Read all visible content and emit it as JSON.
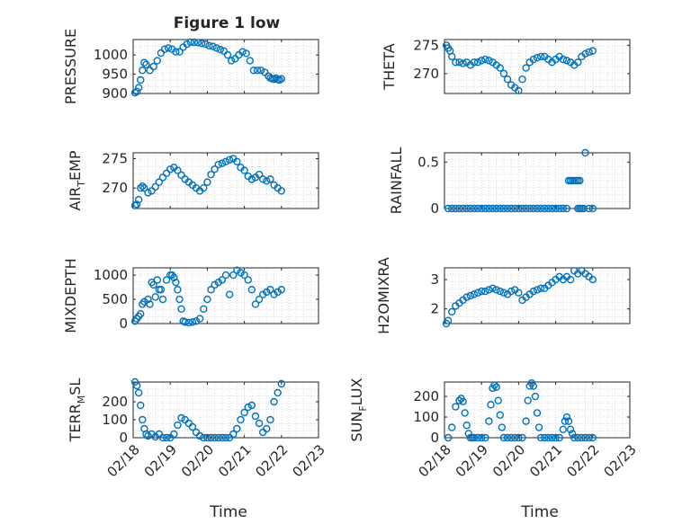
{
  "figure": {
    "title": "Figure 1 low",
    "xlabel": "Time",
    "x_ticks": [
      "02/18",
      "02/19",
      "02/20",
      "02/21",
      "02/22",
      "02/23"
    ]
  },
  "style": {
    "marker_color": "#0072BD",
    "axis_color": "#262626",
    "grid_color": "#d9d9d9"
  },
  "chart_data": [
    {
      "type": "scatter",
      "panel": "pressure",
      "title": "Figure 1 low",
      "ylabel": "PRESSURE",
      "ylabel_parts": [
        "PRESSURE"
      ],
      "xlabel": "",
      "xlim": [
        0,
        5
      ],
      "ylim": [
        900,
        1040
      ],
      "yticks": [
        900,
        950,
        1000
      ],
      "ytick_labels": [
        "900",
        "950",
        "1000"
      ],
      "x": [
        0.05,
        0.1,
        0.15,
        0.2,
        0.25,
        0.3,
        0.35,
        0.45,
        0.55,
        0.65,
        0.75,
        0.85,
        0.95,
        1.05,
        1.15,
        1.25,
        1.35,
        1.45,
        1.55,
        1.65,
        1.75,
        1.85,
        1.95,
        2.05,
        2.15,
        2.25,
        2.35,
        2.45,
        2.55,
        2.65,
        2.75,
        2.85,
        2.95,
        3.05,
        3.15,
        3.25,
        3.35,
        3.45,
        3.55,
        3.65,
        3.7,
        3.75,
        3.8,
        3.85,
        3.9,
        3.95,
        4.0
      ],
      "y": [
        902,
        905,
        915,
        935,
        960,
        980,
        975,
        960,
        970,
        985,
        1005,
        1015,
        1018,
        1015,
        1008,
        1008,
        1020,
        1028,
        1033,
        1033,
        1032,
        1030,
        1028,
        1024,
        1022,
        1018,
        1014,
        1010,
        1000,
        985,
        990,
        1000,
        1008,
        1004,
        985,
        960,
        960,
        960,
        955,
        945,
        940,
        938,
        937,
        940,
        936,
        935,
        938
      ]
    },
    {
      "type": "scatter",
      "panel": "theta",
      "ylabel": "THETA",
      "ylabel_parts": [
        "THETA"
      ],
      "xlabel": "",
      "xlim": [
        0,
        5
      ],
      "ylim": [
        266.5,
        276
      ],
      "yticks": [
        270,
        275
      ],
      "ytick_labels": [
        "270",
        "275"
      ],
      "x": [
        0.05,
        0.1,
        0.15,
        0.2,
        0.3,
        0.4,
        0.5,
        0.6,
        0.7,
        0.8,
        0.9,
        1.0,
        1.1,
        1.2,
        1.3,
        1.4,
        1.5,
        1.6,
        1.7,
        1.8,
        1.9,
        2.0,
        2.1,
        2.2,
        2.3,
        2.4,
        2.5,
        2.6,
        2.7,
        2.8,
        2.9,
        3.0,
        3.1,
        3.2,
        3.3,
        3.4,
        3.5,
        3.6,
        3.7,
        3.8,
        3.9,
        4.0
      ],
      "y": [
        275,
        274.5,
        274,
        273,
        272,
        272,
        271.8,
        272,
        271.5,
        272,
        272,
        272.3,
        272.5,
        272.3,
        272,
        271.5,
        271,
        270,
        269,
        268,
        267.5,
        267,
        269,
        271,
        272,
        272.5,
        272.8,
        273,
        273,
        272.5,
        272,
        272.5,
        273,
        272.5,
        272.3,
        272,
        271.5,
        272,
        273,
        273.5,
        273.8,
        274
      ]
    },
    {
      "type": "scatter",
      "panel": "air_temp",
      "ylabel": "AIR_TEMP",
      "ylabel_parts": [
        "AIR",
        "T",
        "EMP"
      ],
      "xlabel": "",
      "xlim": [
        0,
        5
      ],
      "ylim": [
        266.5,
        276
      ],
      "yticks": [
        270,
        275
      ],
      "ytick_labels": [
        "270",
        "275"
      ],
      "x": [
        0.05,
        0.1,
        0.15,
        0.2,
        0.25,
        0.3,
        0.4,
        0.5,
        0.6,
        0.7,
        0.8,
        0.9,
        1.0,
        1.1,
        1.2,
        1.3,
        1.4,
        1.5,
        1.6,
        1.7,
        1.8,
        1.9,
        2.0,
        2.1,
        2.2,
        2.3,
        2.4,
        2.5,
        2.6,
        2.7,
        2.8,
        2.9,
        3.0,
        3.1,
        3.2,
        3.3,
        3.4,
        3.5,
        3.6,
        3.7,
        3.8,
        3.9,
        4.0
      ],
      "y": [
        267,
        267.2,
        268,
        270,
        270.3,
        270,
        269.2,
        269.5,
        270.2,
        271,
        271.8,
        272.5,
        273.2,
        273.5,
        273,
        272.2,
        271.5,
        271,
        270.5,
        270,
        269.5,
        270,
        271,
        272.3,
        273.2,
        274,
        274.2,
        274.5,
        274.8,
        275,
        274.5,
        273.5,
        273,
        272,
        271.5,
        271.8,
        272.3,
        271.5,
        271.2,
        271.5,
        270.5,
        270,
        269.5
      ]
    },
    {
      "type": "scatter",
      "panel": "rainfall",
      "ylabel": "RAINFALL",
      "ylabel_parts": [
        "RAINFALL"
      ],
      "xlabel": "",
      "xlim": [
        0,
        5
      ],
      "ylim": [
        0,
        0.6
      ],
      "yticks": [
        0,
        0.5
      ],
      "ytick_labels": [
        "0",
        "0.5"
      ],
      "x": [
        0.1,
        0.2,
        0.3,
        0.4,
        0.5,
        0.6,
        0.7,
        0.8,
        0.9,
        1.0,
        1.1,
        1.2,
        1.3,
        1.4,
        1.5,
        1.6,
        1.7,
        1.8,
        1.9,
        2.0,
        2.1,
        2.2,
        2.3,
        2.4,
        2.5,
        2.6,
        2.7,
        2.8,
        2.9,
        3.0,
        3.1,
        3.2,
        3.3,
        3.35,
        3.4,
        3.45,
        3.5,
        3.55,
        3.6,
        3.65,
        3.6,
        3.65,
        3.7,
        3.75,
        3.8,
        3.9,
        4.0
      ],
      "y": [
        0,
        0,
        0,
        0,
        0,
        0,
        0,
        0,
        0,
        0,
        0,
        0,
        0,
        0,
        0,
        0,
        0,
        0,
        0,
        0,
        0,
        0,
        0,
        0,
        0,
        0,
        0,
        0,
        0,
        0,
        0,
        0,
        0,
        0.3,
        0.3,
        0.3,
        0.3,
        0.3,
        0.3,
        0.3,
        0,
        0,
        0,
        0,
        0.6,
        0,
        0
      ]
    },
    {
      "type": "scatter",
      "panel": "mixdepth",
      "ylabel": "MIXDEPTH",
      "ylabel_parts": [
        "MIXDEPTH"
      ],
      "xlabel": "",
      "xlim": [
        0,
        5
      ],
      "ylim": [
        0,
        1150
      ],
      "yticks": [
        0,
        500,
        1000
      ],
      "ytick_labels": [
        "0",
        "500",
        "1000"
      ],
      "x": [
        0.05,
        0.1,
        0.15,
        0.2,
        0.25,
        0.3,
        0.4,
        0.45,
        0.5,
        0.55,
        0.6,
        0.65,
        0.7,
        0.75,
        0.8,
        0.9,
        1.0,
        1.05,
        1.1,
        1.15,
        1.2,
        1.25,
        1.3,
        1.35,
        1.4,
        1.5,
        1.6,
        1.7,
        1.8,
        1.9,
        2.0,
        2.1,
        2.2,
        2.3,
        2.4,
        2.5,
        2.6,
        2.7,
        2.8,
        2.9,
        3.0,
        3.1,
        3.2,
        3.3,
        3.4,
        3.5,
        3.6,
        3.7,
        3.8,
        3.9,
        4.0
      ],
      "y": [
        50,
        100,
        150,
        200,
        400,
        450,
        500,
        400,
        850,
        800,
        550,
        900,
        700,
        700,
        500,
        900,
        1000,
        1000,
        950,
        850,
        700,
        500,
        300,
        50,
        30,
        20,
        30,
        50,
        100,
        300,
        500,
        700,
        800,
        850,
        900,
        1000,
        600,
        1000,
        1100,
        1050,
        1000,
        900,
        700,
        400,
        500,
        600,
        650,
        700,
        600,
        650,
        700
      ]
    },
    {
      "type": "scatter",
      "panel": "h2omixra",
      "ylabel": "H2OMIXRA",
      "ylabel_parts": [
        "H2OMIXRA"
      ],
      "xlabel": "",
      "xlim": [
        0,
        5
      ],
      "ylim": [
        1.5,
        3.4
      ],
      "yticks": [
        2,
        3
      ],
      "ytick_labels": [
        "2",
        "3"
      ],
      "x": [
        0.05,
        0.1,
        0.2,
        0.3,
        0.4,
        0.5,
        0.6,
        0.7,
        0.8,
        0.9,
        1.0,
        1.1,
        1.2,
        1.3,
        1.4,
        1.5,
        1.6,
        1.7,
        1.8,
        1.9,
        2.0,
        2.1,
        2.2,
        2.3,
        2.4,
        2.5,
        2.6,
        2.7,
        2.8,
        2.9,
        3.0,
        3.1,
        3.2,
        3.3,
        3.4,
        3.5,
        3.6,
        3.7,
        3.8,
        3.9,
        4.0
      ],
      "y": [
        1.5,
        1.6,
        1.9,
        2.1,
        2.2,
        2.3,
        2.4,
        2.45,
        2.5,
        2.55,
        2.6,
        2.6,
        2.65,
        2.7,
        2.65,
        2.6,
        2.55,
        2.5,
        2.6,
        2.65,
        2.55,
        2.3,
        2.4,
        2.5,
        2.6,
        2.65,
        2.7,
        2.7,
        2.8,
        2.9,
        3.0,
        3.1,
        3.0,
        3.1,
        3.0,
        3.3,
        3.2,
        3.3,
        3.2,
        3.1,
        3.0
      ]
    },
    {
      "type": "scatter",
      "panel": "terr_msl",
      "ylabel": "TERR_MSL",
      "ylabel_parts": [
        "TERR",
        "M",
        "SL"
      ],
      "xlabel": "Time",
      "xlim": [
        0,
        5
      ],
      "ylim": [
        0,
        310
      ],
      "yticks": [
        0,
        100,
        200
      ],
      "ytick_labels": [
        "0",
        "100",
        "200"
      ],
      "x": [
        0.05,
        0.1,
        0.15,
        0.2,
        0.25,
        0.3,
        0.35,
        0.4,
        0.5,
        0.6,
        0.7,
        0.8,
        0.9,
        1.0,
        1.1,
        1.2,
        1.3,
        1.4,
        1.5,
        1.6,
        1.7,
        1.8,
        1.9,
        2.0,
        2.1,
        2.2,
        2.3,
        2.4,
        2.5,
        2.6,
        2.7,
        2.8,
        2.9,
        3.0,
        3.1,
        3.2,
        3.3,
        3.4,
        3.5,
        3.6,
        3.7,
        3.8,
        3.9,
        4.0
      ],
      "y": [
        310,
        290,
        250,
        180,
        100,
        50,
        20,
        10,
        20,
        5,
        20,
        0,
        0,
        0,
        20,
        70,
        110,
        100,
        80,
        60,
        30,
        10,
        0,
        0,
        0,
        0,
        0,
        0,
        0,
        0,
        20,
        50,
        100,
        140,
        170,
        180,
        120,
        80,
        30,
        50,
        100,
        200,
        250,
        300
      ]
    },
    {
      "type": "scatter",
      "panel": "sun_flux",
      "ylabel": "SUN_FLUX",
      "ylabel_parts": [
        "SUN",
        "F",
        "LUX"
      ],
      "xlabel": "Time",
      "xlim": [
        0,
        5
      ],
      "ylim": [
        0,
        270
      ],
      "yticks": [
        0,
        100,
        200
      ],
      "ytick_labels": [
        "0",
        "100",
        "200"
      ],
      "x": [
        0.1,
        0.2,
        0.3,
        0.4,
        0.45,
        0.5,
        0.55,
        0.6,
        0.65,
        0.7,
        0.75,
        0.8,
        0.9,
        1.0,
        1.1,
        1.2,
        1.25,
        1.3,
        1.35,
        1.4,
        1.45,
        1.5,
        1.55,
        1.6,
        1.7,
        1.8,
        1.9,
        2.0,
        2.1,
        2.2,
        2.25,
        2.3,
        2.35,
        2.4,
        2.45,
        2.5,
        2.55,
        2.6,
        2.7,
        2.8,
        2.9,
        3.0,
        3.1,
        3.2,
        3.25,
        3.3,
        3.35,
        3.4,
        3.45,
        3.5,
        3.6,
        3.7,
        3.8,
        3.9,
        4.0
      ],
      "y": [
        0,
        50,
        150,
        180,
        190,
        175,
        120,
        60,
        20,
        0,
        0,
        0,
        0,
        0,
        0,
        80,
        160,
        240,
        255,
        245,
        180,
        110,
        50,
        0,
        0,
        0,
        0,
        0,
        0,
        80,
        180,
        250,
        265,
        250,
        200,
        120,
        50,
        0,
        0,
        0,
        0,
        0,
        0,
        40,
        80,
        100,
        80,
        40,
        20,
        0,
        0,
        0,
        0,
        0,
        0
      ]
    }
  ]
}
